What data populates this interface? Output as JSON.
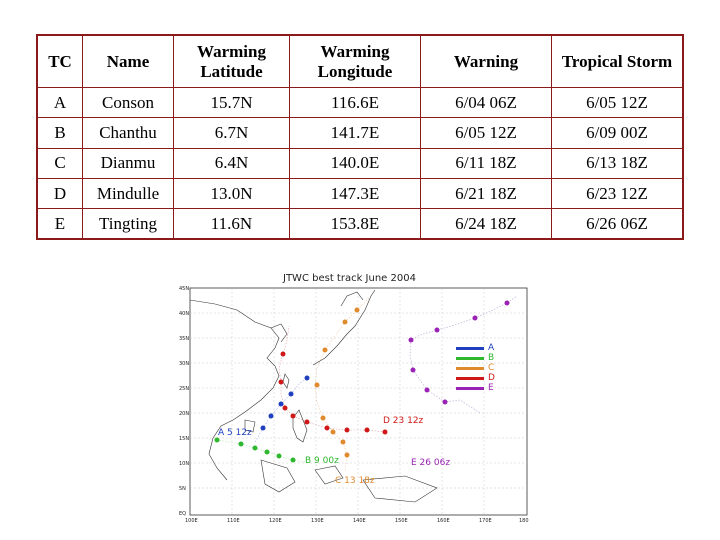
{
  "table": {
    "headers": {
      "tc": "TC",
      "name": "Name",
      "warm_lat_1": "Warming",
      "warm_lat_2": "Latitude",
      "warm_lon_1": "Warming",
      "warm_lon_2": "Longitude",
      "warning": "Warning",
      "storm": "Tropical Storm"
    },
    "rows": [
      {
        "tc": "A",
        "name": "Conson",
        "lat": "15.7N",
        "lon": "116.6E",
        "warning": "6/04 06Z",
        "storm": "6/05 12Z"
      },
      {
        "tc": "B",
        "name": "Chanthu",
        "lat": "6.7N",
        "lon": "141.7E",
        "warning": "6/05 12Z",
        "storm": "6/09 00Z"
      },
      {
        "tc": "C",
        "name": "Dianmu",
        "lat": "6.4N",
        "lon": "140.0E",
        "warning": "6/11 18Z",
        "storm": "6/13 18Z"
      },
      {
        "tc": "D",
        "name": "Mindulle",
        "lat": "13.0N",
        "lon": "147.3E",
        "warning": "6/21 18Z",
        "storm": "6/23 12Z"
      },
      {
        "tc": "E",
        "name": "Tingting",
        "lat": "11.6N",
        "lon": "153.8E",
        "warning": "6/24 18Z",
        "storm": "6/26 06Z"
      }
    ]
  },
  "map": {
    "title": "JTWC best track   June 2004",
    "lat_labels": [
      "45N",
      "40N",
      "35N",
      "30N",
      "25N",
      "20N",
      "15N",
      "10N",
      "5N",
      "EQ"
    ],
    "lon_labels": [
      "100E",
      "110E",
      "120E",
      "130E",
      "140E",
      "150E",
      "160E",
      "170E",
      "180"
    ],
    "legend": [
      {
        "label": "A",
        "color": "#1f3fbf"
      },
      {
        "label": "B",
        "color": "#2fb82f"
      },
      {
        "label": "C",
        "color": "#e08a2e"
      },
      {
        "label": "D",
        "color": "#d01818"
      },
      {
        "label": "E",
        "color": "#9a22b4"
      }
    ],
    "annotations": {
      "a": "A  5 12z",
      "b": "B  9 00z",
      "c": "C 13 18z",
      "d": "D  23 12z",
      "e": "E  26 06z"
    }
  }
}
